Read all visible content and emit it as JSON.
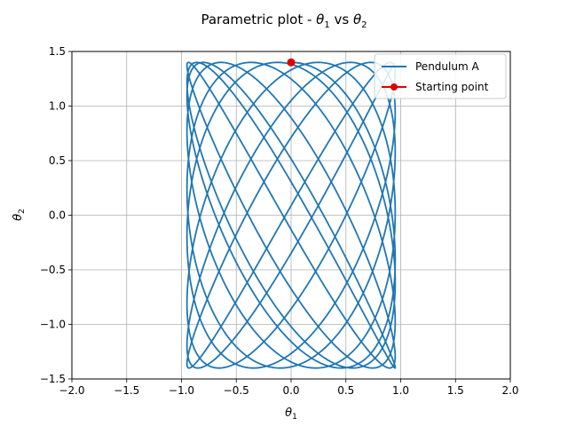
{
  "chart_data": {
    "type": "line",
    "title": {
      "base": "Parametric plot - ",
      "v1": "θ",
      "s1": "1",
      "mid": " vs ",
      "v2": "θ",
      "s2": "2"
    },
    "xlabel": {
      "var": "θ",
      "sub": "1"
    },
    "ylabel": {
      "var": "θ",
      "sub": "2"
    },
    "xlim": [
      -2.0,
      2.0
    ],
    "ylim": [
      -1.5,
      1.5
    ],
    "xticks": [
      -2.0,
      -1.5,
      -1.0,
      -0.5,
      0.0,
      0.5,
      1.0,
      1.5,
      2.0
    ],
    "xtick_labels": [
      "−2.0",
      "−1.5",
      "−1.0",
      "−0.5",
      "0.0",
      "0.5",
      "1.0",
      "1.5",
      "2.0"
    ],
    "yticks": [
      -1.5,
      -1.0,
      -0.5,
      0.0,
      0.5,
      1.0,
      1.5
    ],
    "ytick_labels": [
      "−1.5",
      "−1.0",
      "−0.5",
      "0.0",
      "0.5",
      "1.0",
      "1.5"
    ],
    "grid": true,
    "legend_position": "top-right",
    "series": [
      {
        "name": "Pendulum A",
        "color": "#1f77b4",
        "kind": "parametric-curve",
        "approximation": {
          "theta1_amp": 0.95,
          "theta2_amp": 1.4,
          "omega1": 1.0,
          "omega2": 1.19,
          "t_max": 58,
          "samples": 2400
        }
      },
      {
        "name": "Starting point",
        "color": "#e00000",
        "kind": "marker",
        "x": [
          0.0
        ],
        "y": [
          1.4
        ]
      }
    ]
  }
}
